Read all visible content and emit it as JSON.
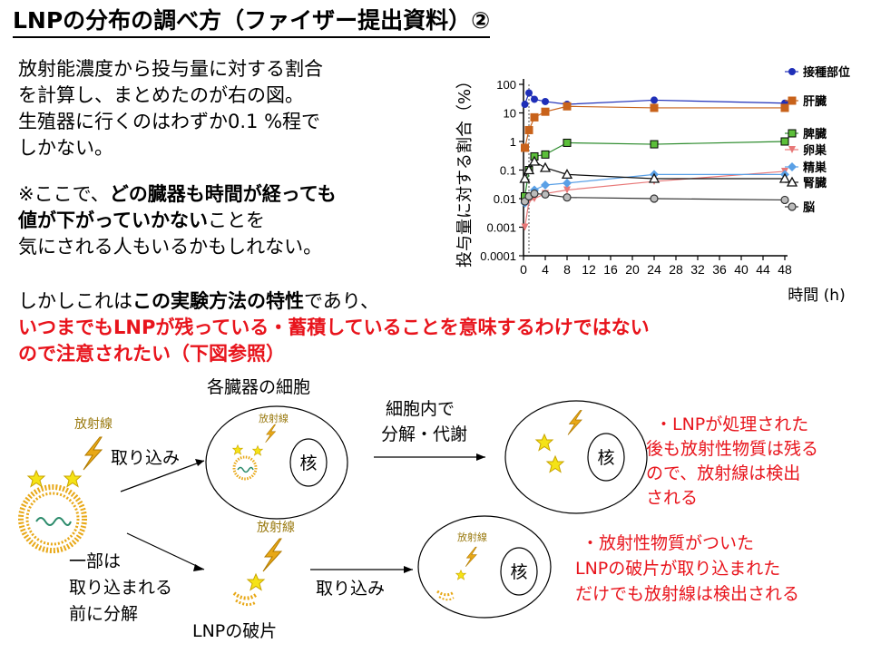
{
  "slide": {
    "title": "LNPの分布の調べ方（ファイザー提出資料）②",
    "intro_lines": [
      "放射能濃度から投与量に対する割合",
      "を計算し、まとめたのが右の図。",
      "生殖器に行くのはわずか0.1 %程で",
      "しかない。"
    ],
    "note": {
      "line1_a": "※ここで、",
      "line1_b": "どの臓器も時間が経っても",
      "line2_a": "値が下がっていかない",
      "line2_b": "ことを",
      "line3": "気にされる人もいるかもしれない。"
    },
    "but": {
      "line1_a": "しかしこれは",
      "line1_b": "この実験方法の特性",
      "line1_c": "であり、",
      "line2": "いつまでもLNPが残っている・蓄積していることを意味するわけではない",
      "line3": "ので注意されたい（下図参照）"
    }
  },
  "chart_data": {
    "type": "line",
    "ylabel": "投与量に対する割合（%）",
    "xlabel": "時間 (h)",
    "y_scale": "log",
    "ylim": [
      0.0001,
      100
    ],
    "xlim": [
      0,
      48
    ],
    "x_ticks": [
      0,
      4,
      8,
      12,
      16,
      20,
      24,
      28,
      32,
      36,
      40,
      44,
      48
    ],
    "y_ticks": [
      "100",
      "10",
      "1",
      "0.1",
      "0.01",
      "0.001",
      "0.0001"
    ],
    "legend_placement": "right",
    "series": [
      {
        "name": "接種部位",
        "color": "#1f2fb8",
        "marker": "circle",
        "x": [
          0.25,
          1,
          2,
          4,
          8,
          24,
          48
        ],
        "y": [
          20,
          50,
          30,
          25,
          20,
          28,
          22
        ]
      },
      {
        "name": "肝臓",
        "color": "#c8621a",
        "marker": "square",
        "x": [
          0.25,
          1,
          2,
          4,
          8,
          24,
          48
        ],
        "y": [
          0.6,
          2.5,
          7,
          11,
          17,
          15,
          15
        ]
      },
      {
        "name": "脾臓",
        "color": "#2a8a2a",
        "marker": "square",
        "x": [
          0.25,
          1,
          2,
          4,
          8,
          24,
          48
        ],
        "y": [
          0.012,
          0.1,
          0.3,
          0.35,
          0.9,
          0.8,
          1.0
        ]
      },
      {
        "name": "卵巣",
        "color": "#e87878",
        "marker": "triangle-down",
        "x": [
          0.25,
          1,
          2,
          4,
          8,
          24,
          48
        ],
        "y": [
          0.001,
          0.008,
          0.01,
          0.015,
          0.02,
          0.04,
          0.09
        ]
      },
      {
        "name": "精巣",
        "color": "#5aa0e6",
        "marker": "diamond",
        "x": [
          0.25,
          1,
          2,
          4,
          8,
          24,
          48
        ],
        "y": [
          0.007,
          0.012,
          0.02,
          0.03,
          0.035,
          0.07,
          0.07
        ]
      },
      {
        "name": "腎臓",
        "color": "#111111",
        "marker": "triangle-up",
        "x": [
          0.25,
          1,
          2,
          4,
          8,
          24,
          48
        ],
        "y": [
          0.05,
          0.1,
          0.2,
          0.12,
          0.07,
          0.05,
          0.05
        ]
      },
      {
        "name": "脳",
        "color": "#333333",
        "marker": "circle-gray",
        "x": [
          0.25,
          1,
          2,
          4,
          8,
          24,
          48
        ],
        "y": [
          0.008,
          0.012,
          0.015,
          0.014,
          0.011,
          0.01,
          0.009
        ]
      }
    ]
  },
  "diagram": {
    "cell_label": "各臓器の細胞",
    "radiation": "放射線",
    "uptake": "取り込み",
    "nucleus": "核",
    "degrade": [
      "細胞内で",
      "分解・代謝"
    ],
    "partial": [
      "一部は",
      "取り込まれる",
      "前に分解"
    ],
    "fragment": "LNPの破片",
    "note1": [
      "・LNPが処理された",
      "後も放射性物質は残る",
      "ので、放射線は検出",
      "される"
    ],
    "note2": [
      "・放射性物質がついた",
      "LNPの破片が取り込まれた",
      "だけでも放射線は検出される"
    ],
    "colors": {
      "accent_red": "#e8141c",
      "radiation_gold": "#e8a817",
      "star_yellow": "#f5e316"
    }
  }
}
